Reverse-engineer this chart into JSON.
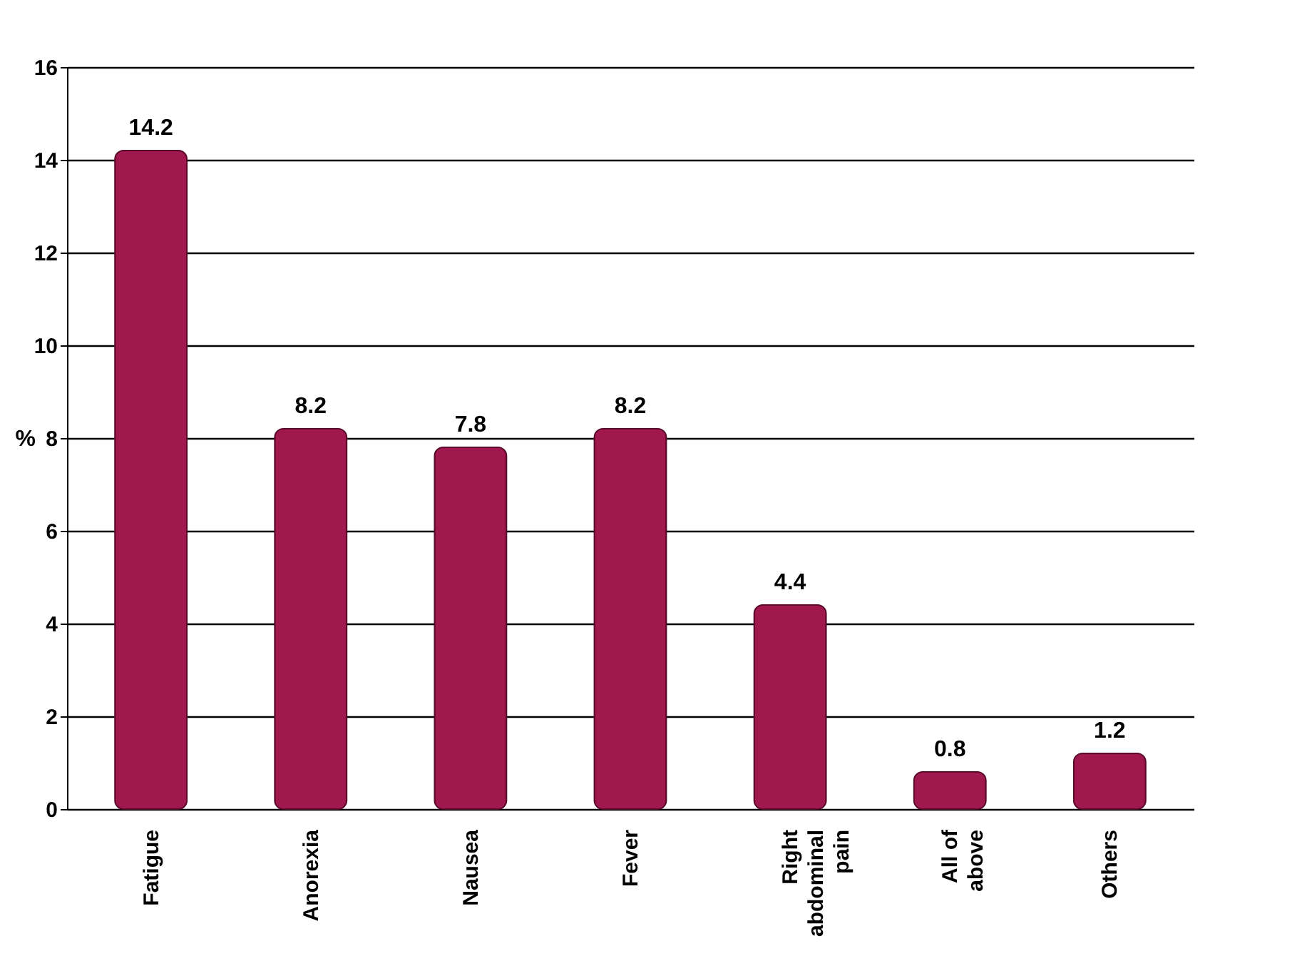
{
  "chart_data": {
    "type": "bar",
    "ylabel": "%",
    "categories": [
      "Fatigue",
      "Anorexia",
      "Nausea",
      "Fever",
      "Right abdominal pain",
      "All of above",
      "Others"
    ],
    "values": [
      14.2,
      8.2,
      7.8,
      8.2,
      4.4,
      0.8,
      1.2
    ],
    "color": "#a0184e",
    "ylim": [
      0,
      16
    ],
    "yticks": [
      0,
      2,
      4,
      6,
      8,
      10,
      12,
      14,
      16
    ],
    "grid": "y",
    "data_labels": true
  }
}
